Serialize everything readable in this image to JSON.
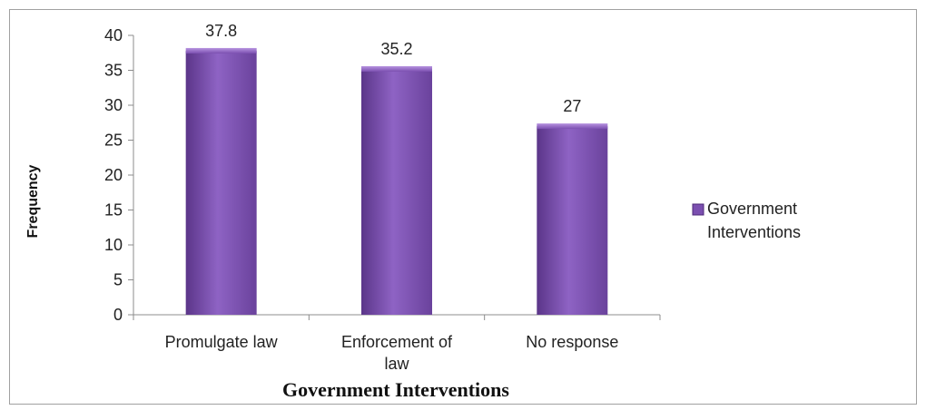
{
  "chart_data": {
    "type": "bar",
    "categories": [
      "Promulgate law",
      "Enforcement of law",
      "No response"
    ],
    "category_lines": [
      [
        "Promulgate law"
      ],
      [
        "Enforcement of",
        "law"
      ],
      [
        "No response"
      ]
    ],
    "series": [
      {
        "name": "Government Interventions",
        "values": [
          37.8,
          35.2,
          27
        ],
        "value_labels": [
          "37.8",
          "35.2",
          "27"
        ]
      }
    ],
    "title": "",
    "xlabel": "Government Interventions",
    "ylabel": "Frequency",
    "ylim": [
      0,
      40
    ],
    "yticks": [
      0,
      5,
      10,
      15,
      20,
      25,
      30,
      35,
      40
    ],
    "grid": false,
    "legend_position": "right",
    "legend_lines": [
      "Government",
      "Interventions"
    ],
    "colors": {
      "bar": "#7b4fb0",
      "bar_light": "#9a6fcf",
      "bar_dark": "#4d2a78",
      "axis": "#8c8c8c"
    }
  }
}
